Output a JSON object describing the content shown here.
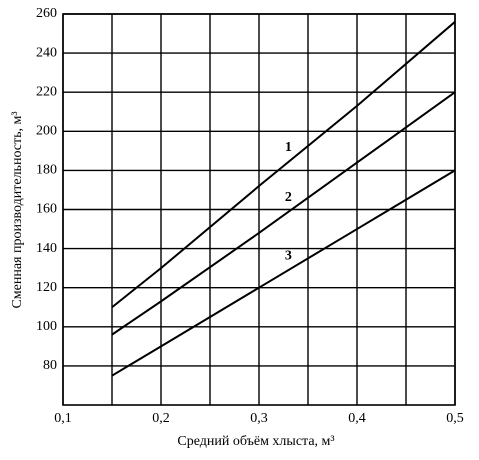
{
  "chart_data": {
    "type": "line",
    "x_label": "Средний объём хлыста, м³",
    "y_label": "Сменная производительность, м³",
    "x": [
      0.15,
      0.2,
      0.3,
      0.4,
      0.5
    ],
    "series": [
      {
        "name": "1",
        "color": "#000000",
        "values": [
          110,
          130,
          172,
          213,
          256
        ]
      },
      {
        "name": "2",
        "color": "#000000",
        "values": [
          96,
          113,
          148,
          184,
          220
        ]
      },
      {
        "name": "3",
        "color": "#000000",
        "values": [
          75,
          90,
          120,
          150,
          180
        ]
      }
    ],
    "xlim": [
      0.1,
      0.5
    ],
    "ylim": [
      60,
      260
    ],
    "xticks": [
      {
        "value": 0.1,
        "label": "0,1"
      },
      {
        "value": 0.2,
        "label": "0,2"
      },
      {
        "value": 0.3,
        "label": "0,3"
      },
      {
        "value": 0.4,
        "label": "0,4"
      },
      {
        "value": 0.5,
        "label": "0,5"
      }
    ],
    "xgrid": [
      0.15,
      0.25,
      0.35,
      0.45
    ],
    "yticks": [
      80,
      100,
      120,
      140,
      160,
      180,
      200,
      220,
      240,
      260
    ],
    "grid": true
  }
}
